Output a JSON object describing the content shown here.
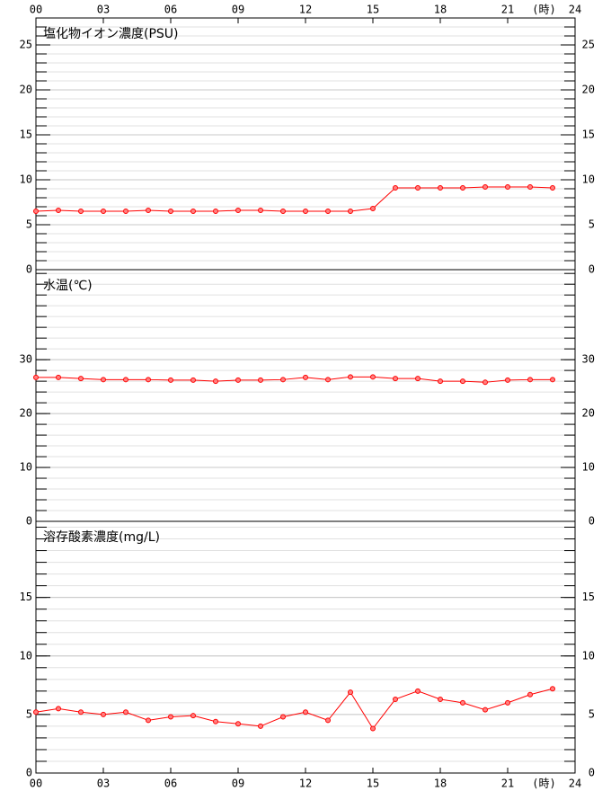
{
  "chart_data": [
    {
      "type": "line",
      "title": "塩化物イオン濃度(PSU)",
      "x_label": "(時)",
      "x": [
        0,
        1,
        2,
        3,
        4,
        5,
        6,
        7,
        8,
        9,
        10,
        11,
        12,
        13,
        14,
        15,
        16,
        17,
        18,
        19,
        20,
        21,
        22,
        23
      ],
      "xlim": [
        0,
        24
      ],
      "xticks": [
        {
          "value": 0,
          "label": "00"
        },
        {
          "value": 3,
          "label": "03"
        },
        {
          "value": 6,
          "label": "06"
        },
        {
          "value": 9,
          "label": "09"
        },
        12,
        15,
        18,
        21,
        24
      ],
      "x_axis_position": "top",
      "ylim": [
        0,
        28
      ],
      "yticks": [
        0,
        5,
        10,
        15,
        20,
        25
      ],
      "minor_ytick_step": 1,
      "grid": true,
      "series": [
        {
          "color": "#ff0000",
          "values": [
            6.5,
            6.6,
            6.5,
            6.5,
            6.5,
            6.6,
            6.5,
            6.5,
            6.5,
            6.6,
            6.6,
            6.5,
            6.5,
            6.5,
            6.5,
            6.8,
            9.1,
            9.1,
            9.1,
            9.1,
            9.2,
            9.2,
            9.2,
            9.1
          ]
        }
      ]
    },
    {
      "type": "line",
      "title": "水温(℃)",
      "x": [
        0,
        1,
        2,
        3,
        4,
        5,
        6,
        7,
        8,
        9,
        10,
        11,
        12,
        13,
        14,
        15,
        16,
        17,
        18,
        19,
        20,
        21,
        22,
        23
      ],
      "xlim": [
        0,
        24
      ],
      "ylim": [
        0,
        46.7
      ],
      "yticks": [
        0,
        10,
        20,
        30
      ],
      "minor_ytick_step": 2,
      "grid": true,
      "series": [
        {
          "color": "#ff0000",
          "values": [
            26.7,
            26.7,
            26.5,
            26.3,
            26.3,
            26.3,
            26.2,
            26.2,
            26.0,
            26.2,
            26.2,
            26.3,
            26.7,
            26.3,
            26.8,
            26.8,
            26.5,
            26.5,
            26.0,
            26.0,
            25.8,
            26.2,
            26.3,
            26.3
          ]
        }
      ]
    },
    {
      "type": "line",
      "title": "溶存酸素濃度(mg/L)",
      "x_label": "(時)",
      "x": [
        0,
        1,
        2,
        3,
        4,
        5,
        6,
        7,
        8,
        9,
        10,
        11,
        12,
        13,
        14,
        15,
        16,
        17,
        18,
        19,
        20,
        21,
        22,
        23
      ],
      "xlim": [
        0,
        24
      ],
      "xticks": [
        {
          "value": 0,
          "label": "00"
        },
        {
          "value": 3,
          "label": "03"
        },
        {
          "value": 6,
          "label": "06"
        },
        {
          "value": 9,
          "label": "09"
        },
        12,
        15,
        18,
        21,
        24
      ],
      "x_axis_position": "bottom",
      "ylim": [
        0,
        21.5
      ],
      "yticks": [
        0,
        5,
        10,
        15
      ],
      "minor_ytick_step": 1,
      "grid": true,
      "series": [
        {
          "color": "#ff0000",
          "values": [
            5.2,
            5.5,
            5.2,
            5.0,
            5.2,
            4.5,
            4.8,
            4.9,
            4.4,
            4.2,
            4.0,
            4.8,
            5.2,
            4.5,
            6.9,
            3.8,
            6.3,
            7.0,
            6.3,
            6.0,
            5.4,
            6.0,
            6.7,
            7.2
          ]
        }
      ]
    }
  ]
}
